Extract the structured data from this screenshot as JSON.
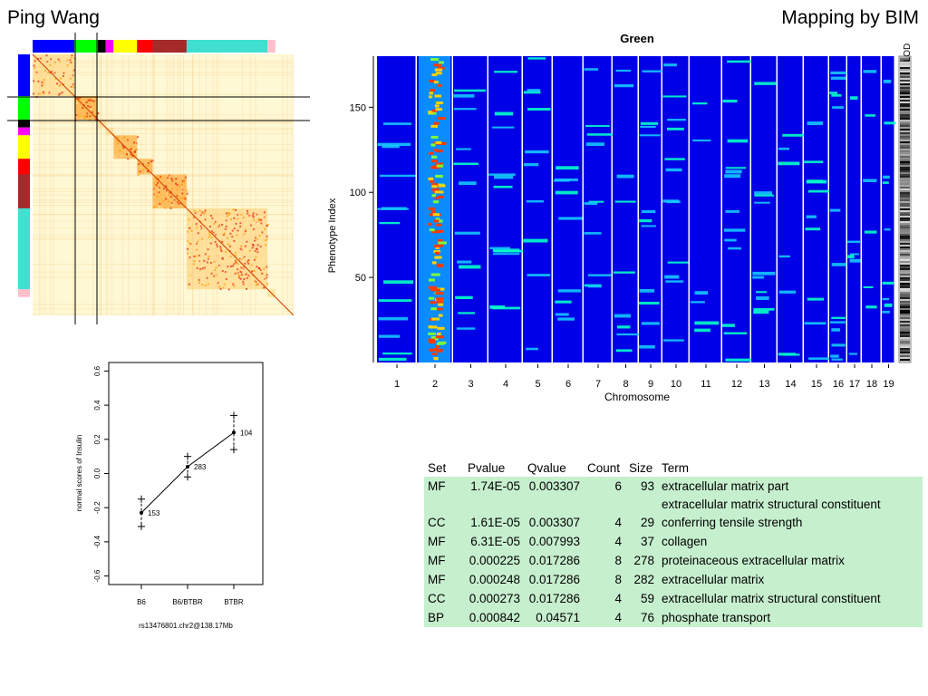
{
  "header": {
    "left": "Ping Wang",
    "right": "Mapping by BIM"
  },
  "colors": {
    "blue": "#0000ff",
    "green": "#00ff00",
    "black": "#000000",
    "magenta": "#ff00ff",
    "yellow": "#ffff00",
    "red": "#ff0000",
    "brown": "#a52a2a",
    "turquoise": "#40e0d0",
    "pink": "#ffc0cb",
    "heat_bg": "#fff8d4",
    "heat_mid": "#ff9a00",
    "heat_high": "#e8200a",
    "map_bg": "#0000e6",
    "table_fill": "#c6efce"
  },
  "module_bar": [
    "blue",
    "green",
    "black",
    "magenta",
    "yellow",
    "red",
    "brown",
    "turquoise",
    "pink"
  ],
  "heatmap": {
    "blocks": [
      {
        "module": "blue",
        "share": 0.16,
        "intensity": 0.55
      },
      {
        "module": "green",
        "share": 0.09,
        "intensity": 0.85
      },
      {
        "module": "black",
        "share": 0.03,
        "intensity": 0.2
      },
      {
        "module": "magenta",
        "share": 0.03,
        "intensity": 0.25
      },
      {
        "module": "yellow",
        "share": 0.09,
        "intensity": 0.65
      },
      {
        "module": "red",
        "share": 0.06,
        "intensity": 0.7
      },
      {
        "module": "brown",
        "share": 0.13,
        "intensity": 0.75
      },
      {
        "module": "turquoise",
        "share": 0.31,
        "intensity": 0.6
      },
      {
        "module": "pink",
        "share": 0.03,
        "intensity": 0.2
      }
    ]
  },
  "bim_map": {
    "title": "Green",
    "xlabel": "Chromosome",
    "ylabel": "Phenotype Index",
    "lod_label": "LOD",
    "chromosomes": [
      "1",
      "2",
      "3",
      "4",
      "5",
      "6",
      "7",
      "8",
      "9",
      "10",
      "11",
      "12",
      "13",
      "14",
      "15",
      "16",
      "17",
      "18",
      "19"
    ],
    "yticks": [
      50,
      100,
      150
    ],
    "ylim": [
      0,
      180
    ]
  },
  "effect_plot": {
    "ylabel": "normal scores of Insulin",
    "xlabel": "rs13476801.chr2@138.17Mb",
    "categories": [
      "B6",
      "B6/BTBR",
      "BTBR"
    ],
    "counts": [
      "153",
      "283",
      "104"
    ],
    "means": [
      -0.23,
      0.04,
      0.24
    ],
    "upper": [
      -0.15,
      0.1,
      0.34
    ],
    "lower": [
      -0.31,
      -0.02,
      0.14
    ],
    "ylim": [
      -0.65,
      0.65
    ],
    "yticks": [
      "-0.6",
      "-0.4",
      "-0.2",
      "0.0",
      "0.2",
      "0.4",
      "0.6"
    ]
  },
  "go_table": {
    "headers": [
      "Set",
      "Pvalue",
      "Qvalue",
      "Count",
      "Size",
      "Term"
    ],
    "rows": [
      {
        "set": "MF",
        "pvalue": "1.74E-05",
        "qvalue": "0.003307",
        "count": "6",
        "size": "93",
        "term": "extracellular matrix part"
      },
      {
        "set": "",
        "pvalue": "",
        "qvalue": "",
        "count": "",
        "size": "",
        "term": "extracellular matrix structural constituent"
      },
      {
        "set": "CC",
        "pvalue": "1.61E-05",
        "qvalue": "0.003307",
        "count": "4",
        "size": "29",
        "term": "conferring tensile strength"
      },
      {
        "set": "MF",
        "pvalue": "6.31E-05",
        "qvalue": "0.007993",
        "count": "4",
        "size": "37",
        "term": "collagen"
      },
      {
        "set": "MF",
        "pvalue": "0.000225",
        "qvalue": "0.017286",
        "count": "8",
        "size": "278",
        "term": "proteinaceous extracellular matrix"
      },
      {
        "set": "MF",
        "pvalue": "0.000248",
        "qvalue": "0.017286",
        "count": "8",
        "size": "282",
        "term": "extracellular matrix"
      },
      {
        "set": "CC",
        "pvalue": "0.000273",
        "qvalue": "0.017286",
        "count": "4",
        "size": "59",
        "term": "extracellular matrix structural constituent"
      },
      {
        "set": "BP",
        "pvalue": "0.000842",
        "qvalue": "0.04571",
        "count": "4",
        "size": "76",
        "term": "phosphate transport"
      }
    ]
  }
}
